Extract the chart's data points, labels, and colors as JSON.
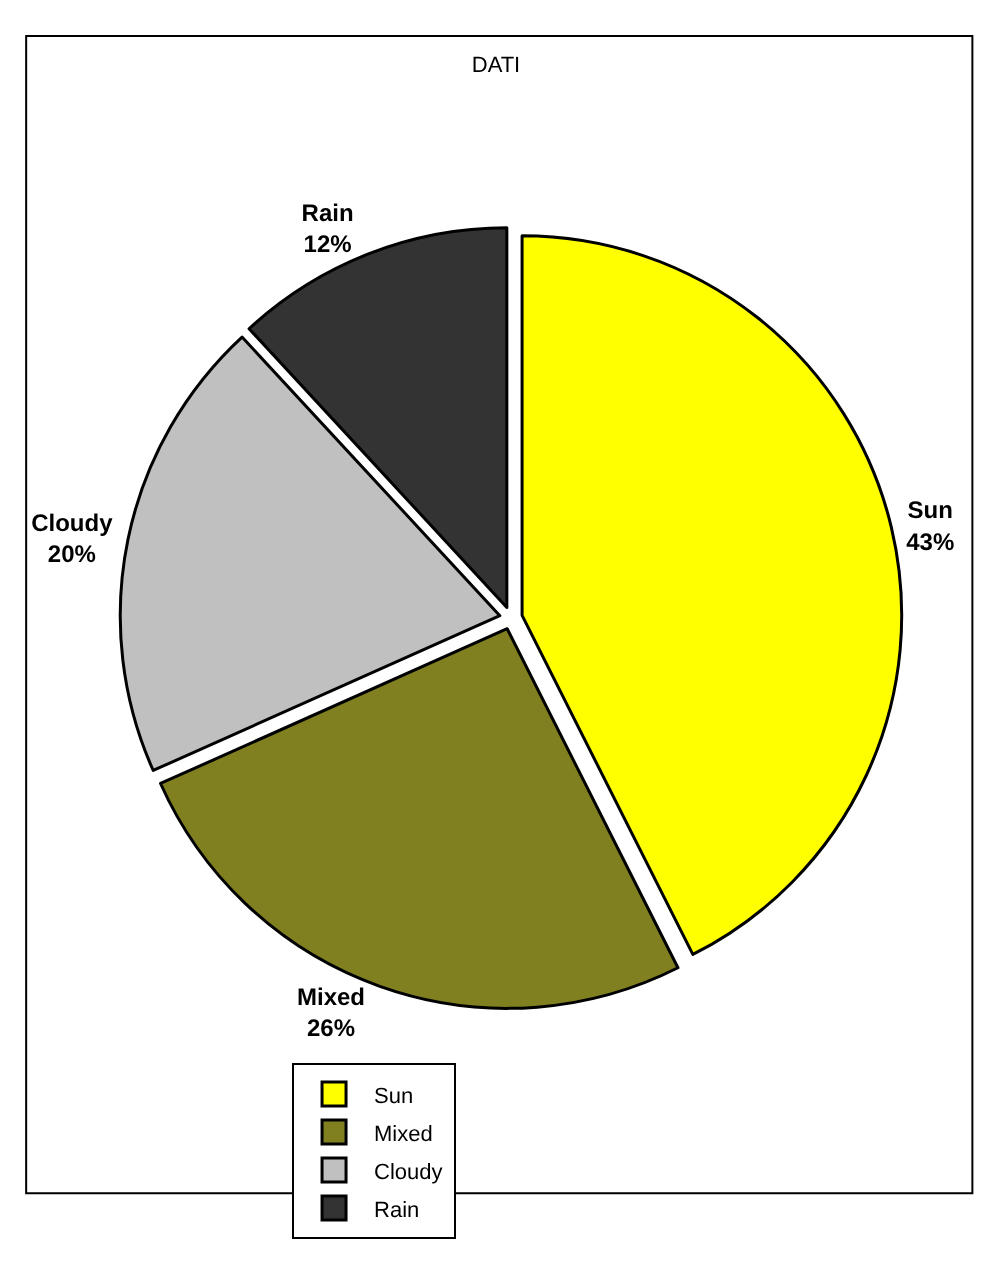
{
  "chart_data": {
    "type": "pie",
    "title": "DATI",
    "categories": [
      "Sun",
      "Mixed",
      "Cloudy",
      "Rain"
    ],
    "values": [
      43,
      26,
      20,
      12
    ],
    "value_labels": [
      "43%",
      "26%",
      "20%",
      "12%"
    ],
    "colors": [
      "#ffff00",
      "#808020",
      "#c0c0c0",
      "#333333"
    ],
    "legend": "bottom"
  }
}
